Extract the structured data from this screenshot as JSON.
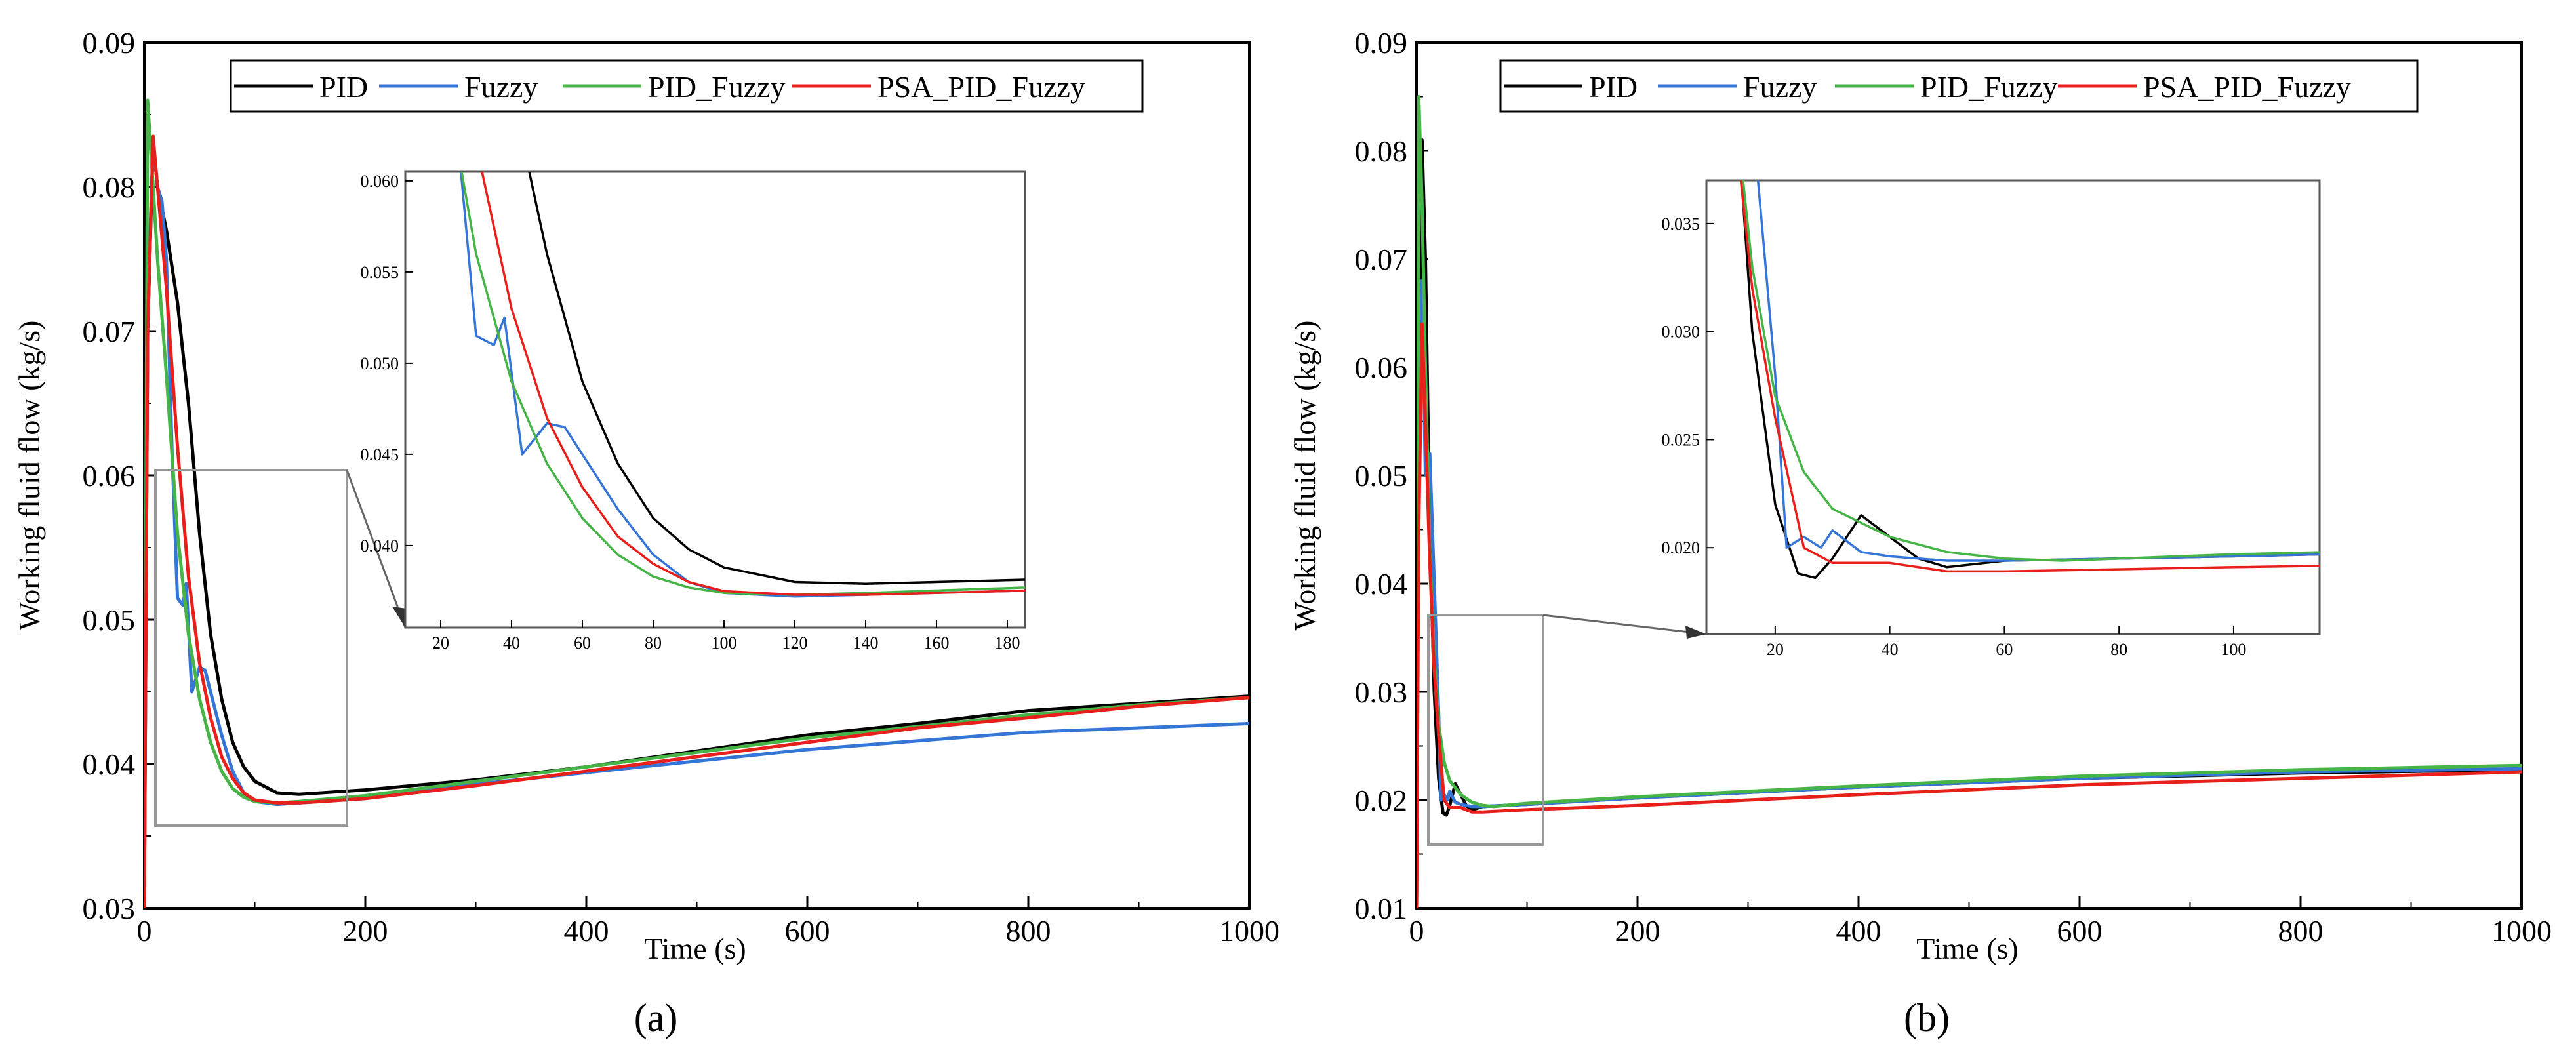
{
  "chart_data": [
    {
      "type": "line",
      "panel_label": "(a)",
      "xlabel": "Time (s)",
      "ylabel": "Working fluid flow (kg/s)",
      "xlim": [
        0,
        1000
      ],
      "ylim": [
        0.03,
        0.09
      ],
      "xticks": [
        0,
        200,
        400,
        600,
        800,
        1000
      ],
      "yticks": [
        0.03,
        0.04,
        0.05,
        0.06,
        0.07,
        0.08,
        0.09
      ],
      "legend": [
        "PID",
        "Fuzzy",
        "PID_Fuzzy",
        "PSA_PID_Fuzzy"
      ],
      "legend_position": "top-center",
      "colors": {
        "PID": "#000000",
        "Fuzzy": "#3575d5",
        "PID_Fuzzy": "#46b446",
        "PSA_PID_Fuzzy": "#e8201c"
      },
      "series": [
        {
          "name": "PID",
          "x": [
            0,
            3,
            8,
            12,
            20,
            30,
            40,
            50,
            60,
            70,
            80,
            90,
            100,
            120,
            140,
            200,
            300,
            400,
            500,
            600,
            700,
            800,
            900,
            1000
          ],
          "y": [
            0.03,
            0.07,
            0.083,
            0.08,
            0.077,
            0.072,
            0.065,
            0.056,
            0.049,
            0.0445,
            0.0415,
            0.0398,
            0.0388,
            0.038,
            0.0379,
            0.0382,
            0.0389,
            0.0398,
            0.0409,
            0.042,
            0.0428,
            0.0437,
            0.0442,
            0.0447
          ]
        },
        {
          "name": "Fuzzy",
          "x": [
            0,
            3,
            8,
            12,
            16,
            20,
            25,
            30,
            35,
            38,
            43,
            50,
            55,
            60,
            70,
            80,
            90,
            100,
            120,
            140,
            200,
            300,
            400,
            500,
            600,
            700,
            800,
            900,
            1000
          ],
          "y": [
            0.03,
            0.072,
            0.083,
            0.08,
            0.079,
            0.075,
            0.062,
            0.0515,
            0.051,
            0.0525,
            0.045,
            0.0467,
            0.0465,
            0.045,
            0.042,
            0.0395,
            0.038,
            0.0374,
            0.0372,
            0.0373,
            0.0376,
            0.0386,
            0.0394,
            0.0402,
            0.041,
            0.0416,
            0.0422,
            0.0425,
            0.0428
          ]
        },
        {
          "name": "PID_Fuzzy",
          "x": [
            0,
            3,
            8,
            12,
            20,
            30,
            40,
            50,
            60,
            70,
            80,
            90,
            100,
            120,
            140,
            200,
            300,
            400,
            500,
            600,
            700,
            800,
            900,
            1000
          ],
          "y": [
            0.03,
            0.086,
            0.08,
            0.075,
            0.067,
            0.056,
            0.049,
            0.0445,
            0.0415,
            0.0395,
            0.0383,
            0.0377,
            0.0374,
            0.0373,
            0.0374,
            0.0378,
            0.0388,
            0.0398,
            0.0408,
            0.0418,
            0.0426,
            0.0434,
            0.0441,
            0.0446
          ]
        },
        {
          "name": "PSA_PID_Fuzzy",
          "x": [
            0,
            3,
            8,
            12,
            20,
            30,
            40,
            50,
            60,
            70,
            80,
            90,
            100,
            120,
            140,
            200,
            300,
            400,
            500,
            600,
            700,
            800,
            900,
            1000
          ],
          "y": [
            0.03,
            0.07,
            0.0835,
            0.08,
            0.073,
            0.062,
            0.053,
            0.047,
            0.0432,
            0.0405,
            0.039,
            0.038,
            0.0375,
            0.0373,
            0.0373,
            0.0376,
            0.0385,
            0.0395,
            0.0405,
            0.0415,
            0.0425,
            0.0432,
            0.044,
            0.0446
          ]
        }
      ],
      "inset": {
        "xlim": [
          10,
          185
        ],
        "ylim": [
          0.0355,
          0.0605
        ],
        "xticks": [
          20,
          40,
          60,
          80,
          100,
          120,
          140,
          160,
          180
        ],
        "yticks": [
          0.04,
          0.045,
          0.05,
          0.055,
          0.06
        ],
        "ytick_labels": [
          "0.040",
          "0.045",
          "0.050",
          "0.055",
          "0.060"
        ]
      }
    },
    {
      "type": "line",
      "panel_label": "(b)",
      "xlabel": "Time (s)",
      "ylabel": "Working fluid flow (kg/s)",
      "xlim": [
        0,
        1000
      ],
      "ylim": [
        0.01,
        0.09
      ],
      "xticks": [
        0,
        200,
        400,
        600,
        800,
        1000
      ],
      "yticks": [
        0.01,
        0.02,
        0.03,
        0.04,
        0.05,
        0.06,
        0.07,
        0.08,
        0.09
      ],
      "legend": [
        "PID",
        "Fuzzy",
        "PID_Fuzzy",
        "PSA_PID_Fuzzy"
      ],
      "legend_position": "top-center",
      "colors": {
        "PID": "#000000",
        "Fuzzy": "#3575d5",
        "PID_Fuzzy": "#46b446",
        "PSA_PID_Fuzzy": "#e8201c"
      },
      "series": [
        {
          "name": "PID",
          "x": [
            0,
            2,
            5,
            8,
            12,
            16,
            20,
            24,
            27,
            30,
            35,
            40,
            45,
            50,
            60,
            80,
            100,
            200,
            400,
            600,
            800,
            1000
          ],
          "y": [
            0.01,
            0.055,
            0.081,
            0.07,
            0.045,
            0.03,
            0.022,
            0.0188,
            0.0186,
            0.0195,
            0.0215,
            0.0205,
            0.0195,
            0.0191,
            0.0194,
            0.0195,
            0.0196,
            0.0202,
            0.0212,
            0.022,
            0.0225,
            0.0228
          ]
        },
        {
          "name": "Fuzzy",
          "x": [
            0,
            2,
            5,
            8,
            12,
            16,
            20,
            22,
            25,
            28,
            30,
            35,
            40,
            50,
            60,
            80,
            100,
            200,
            400,
            600,
            800,
            1000
          ],
          "y": [
            0.01,
            0.06,
            0.068,
            0.05,
            0.052,
            0.04,
            0.028,
            0.02,
            0.0205,
            0.02,
            0.0208,
            0.0198,
            0.0196,
            0.0194,
            0.0194,
            0.0195,
            0.0196,
            0.0202,
            0.0212,
            0.022,
            0.0226,
            0.0229
          ]
        },
        {
          "name": "PID_Fuzzy",
          "x": [
            0,
            2,
            5,
            8,
            12,
            16,
            20,
            25,
            30,
            40,
            50,
            60,
            70,
            80,
            100,
            200,
            400,
            600,
            800,
            1000
          ],
          "y": [
            0.01,
            0.085,
            0.075,
            0.06,
            0.043,
            0.033,
            0.027,
            0.0235,
            0.0218,
            0.0205,
            0.0198,
            0.0195,
            0.0194,
            0.0195,
            0.0197,
            0.0203,
            0.0213,
            0.0222,
            0.0228,
            0.0232
          ]
        },
        {
          "name": "PSA_PID_Fuzzy",
          "x": [
            0,
            2,
            5,
            8,
            12,
            16,
            20,
            25,
            30,
            40,
            50,
            60,
            80,
            100,
            200,
            400,
            600,
            800,
            1000
          ],
          "y": [
            0.01,
            0.045,
            0.064,
            0.055,
            0.042,
            0.032,
            0.026,
            0.02,
            0.0193,
            0.0193,
            0.0189,
            0.0189,
            0.019,
            0.0191,
            0.0195,
            0.0205,
            0.0214,
            0.022,
            0.0226
          ]
        }
      ],
      "inset": {
        "xlim": [
          8,
          115
        ],
        "ylim": [
          0.016,
          0.037
        ],
        "xticks": [
          20,
          40,
          60,
          80,
          100
        ],
        "yticks": [
          0.02,
          0.025,
          0.03,
          0.035
        ],
        "ytick_labels": [
          "0.020",
          "0.025",
          "0.030",
          "0.035"
        ]
      }
    }
  ]
}
